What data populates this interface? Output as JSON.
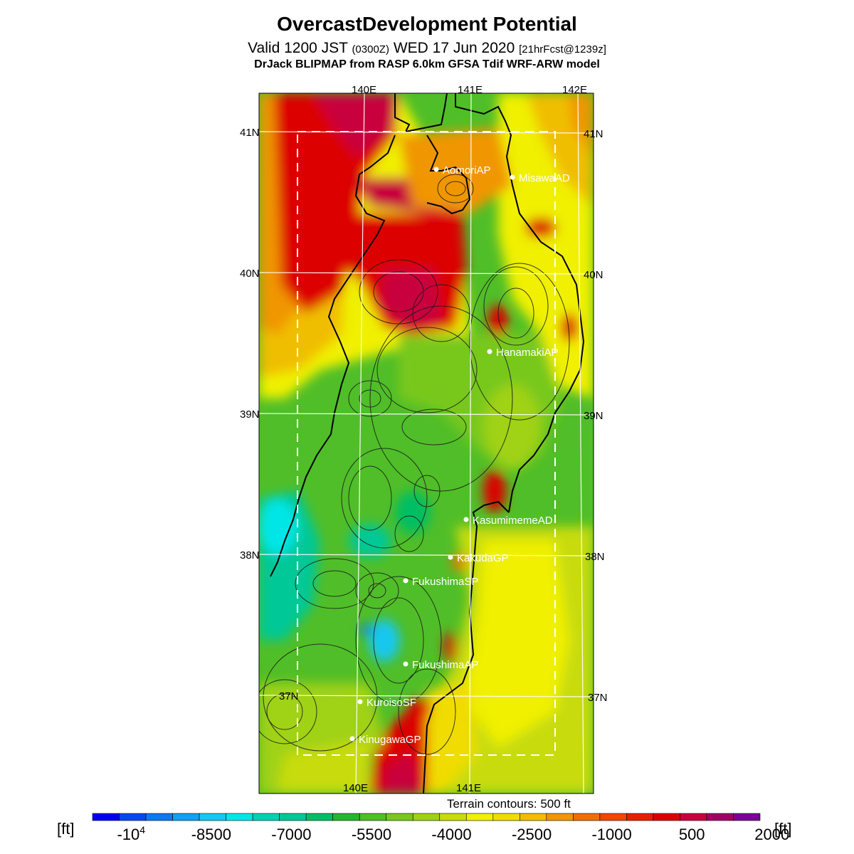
{
  "title": "OvercastDevelopment Potential",
  "subtitle": {
    "main": "Valid 1200 JST",
    "utc": "(0300Z)",
    "date": "WED 17 Jun 2020",
    "forecast": "[21hrFcst@1239z]"
  },
  "source": "DrJack BLIPMAP from RASP 6.0km GFSA Tdif WRF-ARW model",
  "terrain_note": "Terrain contours: 500 ft",
  "unit_label": "[ft]",
  "longitude_labels": [
    "140E",
    "141E",
    "142E"
  ],
  "latitude_labels": [
    "41N",
    "40N",
    "39N",
    "38N",
    "37N"
  ],
  "stations": [
    {
      "name": "AomoriAP"
    },
    {
      "name": "MisawaAD"
    },
    {
      "name": "HanamakiAP"
    },
    {
      "name": "KasumimemeAD"
    },
    {
      "name": "KakudaGP"
    },
    {
      "name": "FukushimaSP"
    },
    {
      "name": "FukushimaAP"
    },
    {
      "name": "KuroisoSF"
    },
    {
      "name": "KinugawaGP"
    }
  ],
  "colorbar": {
    "colors": [
      "#0000f0",
      "#0a46ee",
      "#0f78f0",
      "#12a0f0",
      "#14c8f0",
      "#00e6e6",
      "#00d2b4",
      "#00c896",
      "#00be64",
      "#28b432",
      "#50be28",
      "#78c81e",
      "#a0d214",
      "#c8dc0a",
      "#f0f000",
      "#f0dc00",
      "#f0be00",
      "#f09600",
      "#f06e00",
      "#f04600",
      "#e61e00",
      "#dc0000",
      "#c8003c",
      "#a00064",
      "#780096"
    ],
    "labels": [
      "-10^4",
      "-8500",
      "-7000",
      "-5500",
      "-4000",
      "-2500",
      "-1000",
      "500",
      "2000"
    ]
  },
  "colors": {
    "land_green": "#50be28",
    "red": "#dc0000",
    "crimson": "#c8003c",
    "yellow": "#f0f000",
    "orange": "#f09600"
  }
}
